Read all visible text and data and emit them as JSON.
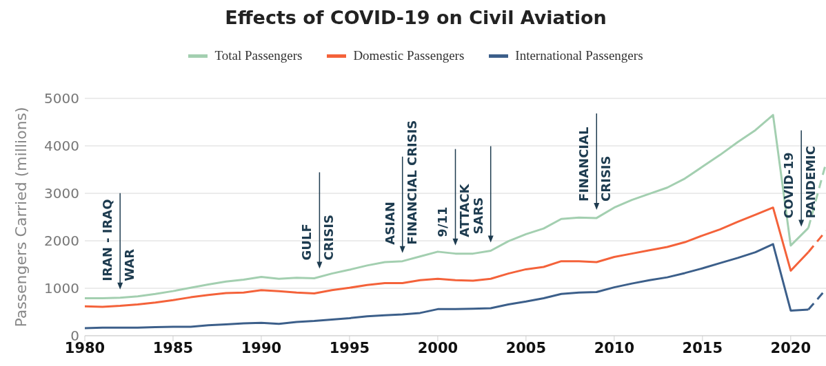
{
  "chart_data": {
    "type": "line",
    "title": "Effects of COVID-19 on Civil Aviation",
    "ylabel": "Passengers Carried (millions)",
    "xlim": [
      1980,
      2022
    ],
    "xticks": [
      1980,
      1985,
      1990,
      1995,
      2000,
      2005,
      2010,
      2015,
      2020
    ],
    "ylim": [
      0,
      5000
    ],
    "yticks": [
      0,
      1000,
      2000,
      3000,
      4000,
      5000
    ],
    "grid": "y",
    "legend": "top",
    "marker": "none",
    "x": [
      1980,
      1981,
      1982,
      1983,
      1984,
      1985,
      1986,
      1987,
      1988,
      1989,
      1990,
      1991,
      1992,
      1993,
      1994,
      1995,
      1996,
      1997,
      1998,
      1999,
      2000,
      2001,
      2002,
      2003,
      2004,
      2005,
      2006,
      2007,
      2008,
      2009,
      2010,
      2011,
      2012,
      2013,
      2014,
      2015,
      2016,
      2017,
      2018,
      2019,
      2020,
      2021,
      2022
    ],
    "series": [
      {
        "name": "Total Passengers",
        "color": "#a3cfb0",
        "line_style": "solid",
        "values": [
          790,
          790,
          800,
          830,
          880,
          940,
          1010,
          1080,
          1140,
          1180,
          1240,
          1200,
          1220,
          1210,
          1310,
          1390,
          1480,
          1550,
          1570,
          1670,
          1770,
          1730,
          1730,
          1790,
          1990,
          2140,
          2260,
          2460,
          2490,
          2480,
          2700,
          2860,
          2990,
          3120,
          3310,
          3560,
          3810,
          4080,
          4330,
          4650,
          1900,
          2270,
          null
        ]
      },
      {
        "name": "Domestic Passengers",
        "color": "#f4623a",
        "line_style": "solid",
        "values": [
          620,
          610,
          630,
          660,
          700,
          750,
          810,
          860,
          900,
          910,
          960,
          940,
          910,
          890,
          960,
          1010,
          1070,
          1110,
          1110,
          1170,
          1200,
          1170,
          1160,
          1200,
          1310,
          1400,
          1450,
          1570,
          1570,
          1550,
          1660,
          1730,
          1800,
          1870,
          1970,
          2110,
          2240,
          2400,
          2550,
          2700,
          1370,
          1760,
          null
        ]
      },
      {
        "name": "International Passengers",
        "color": "#3c5f8a",
        "line_style": "solid",
        "values": [
          160,
          170,
          170,
          170,
          180,
          190,
          190,
          220,
          240,
          260,
          270,
          250,
          290,
          310,
          340,
          370,
          410,
          430,
          450,
          480,
          560,
          560,
          570,
          580,
          660,
          720,
          790,
          880,
          910,
          920,
          1020,
          1100,
          1170,
          1230,
          1320,
          1420,
          1530,
          1640,
          1760,
          1930,
          530,
          550,
          null
        ]
      },
      {
        "color": "#a3cfb0",
        "line_style": "dashed",
        "values": [
          null,
          null,
          null,
          null,
          null,
          null,
          null,
          null,
          null,
          null,
          null,
          null,
          null,
          null,
          null,
          null,
          null,
          null,
          null,
          null,
          null,
          null,
          null,
          null,
          null,
          null,
          null,
          null,
          null,
          null,
          null,
          null,
          null,
          null,
          null,
          null,
          null,
          null,
          null,
          null,
          null,
          2270,
          3640
        ]
      },
      {
        "color": "#f4623a",
        "line_style": "dashed",
        "values": [
          null,
          null,
          null,
          null,
          null,
          null,
          null,
          null,
          null,
          null,
          null,
          null,
          null,
          null,
          null,
          null,
          null,
          null,
          null,
          null,
          null,
          null,
          null,
          null,
          null,
          null,
          null,
          null,
          null,
          null,
          null,
          null,
          null,
          null,
          null,
          null,
          null,
          null,
          null,
          null,
          null,
          1760,
          2210
        ]
      },
      {
        "color": "#3c5f8a",
        "line_style": "dashed",
        "values": [
          null,
          null,
          null,
          null,
          null,
          null,
          null,
          null,
          null,
          null,
          null,
          null,
          null,
          null,
          null,
          null,
          null,
          null,
          null,
          null,
          null,
          null,
          null,
          null,
          null,
          null,
          null,
          null,
          null,
          null,
          null,
          null,
          null,
          null,
          null,
          null,
          null,
          null,
          null,
          null,
          null,
          550,
          980
        ]
      }
    ],
    "ref_lines": [
      {
        "axis": "x",
        "value": 1982,
        "label": "IRAN - IRAQ\nWAR"
      },
      {
        "axis": "x",
        "value": 1993.3,
        "label": "GULF\nCRISIS"
      },
      {
        "axis": "x",
        "value": 1998,
        "label": "ASIAN\nFINANCIAL CRISIS"
      },
      {
        "axis": "x",
        "value": 2001,
        "label": "9/11\nATTACK"
      },
      {
        "axis": "x",
        "value": 2003,
        "label": "SARS"
      },
      {
        "axis": "x",
        "value": 2009,
        "label": "FINANCIAL\nCRISIS"
      },
      {
        "axis": "x",
        "value": 2020.6,
        "label": "COVID-19\nPANDEMIC"
      }
    ]
  }
}
